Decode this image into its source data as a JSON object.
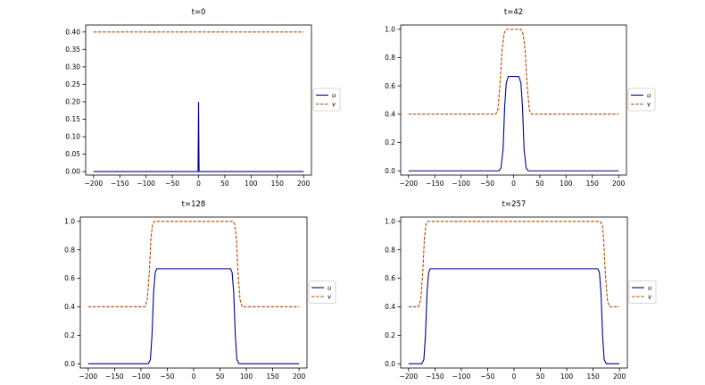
{
  "chart_data": [
    {
      "type": "line",
      "title": "t=0",
      "xlabel": "",
      "ylabel": "",
      "xlim": [
        -215,
        215
      ],
      "ylim": [
        -0.01,
        0.42
      ],
      "xticks": [
        -200,
        -150,
        -100,
        -50,
        0,
        50,
        100,
        150,
        200
      ],
      "xtick_labels": [
        "−200",
        "−150",
        "−100",
        "−50",
        "0",
        "50",
        "100",
        "150",
        "200"
      ],
      "yticks": [
        0.0,
        0.05,
        0.1,
        0.15,
        0.2,
        0.25,
        0.3,
        0.35,
        0.4
      ],
      "ytick_labels": [
        "0.00",
        "0.05",
        "0.10",
        "0.15",
        "0.20",
        "0.25",
        "0.30",
        "0.35",
        "0.40"
      ],
      "grid": false,
      "legend_position": "center-right-outside",
      "series": [
        {
          "name": "u",
          "style": "solid",
          "color": "#00008b",
          "x": [
            -200,
            -2,
            -1,
            0,
            1,
            2,
            200
          ],
          "y": [
            0,
            0,
            0,
            0.2,
            0,
            0,
            0
          ]
        },
        {
          "name": "v",
          "style": "dashed",
          "color": "#b34700",
          "x": [
            -200,
            200
          ],
          "y": [
            0.4,
            0.4
          ]
        }
      ]
    },
    {
      "type": "line",
      "title": "t=42",
      "xlabel": "",
      "ylabel": "",
      "xlim": [
        -215,
        215
      ],
      "ylim": [
        -0.03,
        1.03
      ],
      "xticks": [
        -200,
        -150,
        -100,
        -50,
        0,
        50,
        100,
        150,
        200
      ],
      "xtick_labels": [
        "−200",
        "−150",
        "−100",
        "−50",
        "0",
        "50",
        "100",
        "150",
        "200"
      ],
      "yticks": [
        0.0,
        0.2,
        0.4,
        0.6,
        0.8,
        1.0
      ],
      "ytick_labels": [
        "0.0",
        "0.2",
        "0.4",
        "0.6",
        "0.8",
        "1.0"
      ],
      "grid": false,
      "legend_position": "center-right-outside",
      "series": [
        {
          "name": "u",
          "style": "solid",
          "color": "#00008b",
          "x": [
            -200,
            -28,
            -24,
            -20,
            -17,
            -14,
            -10,
            10,
            14,
            17,
            20,
            24,
            28,
            200
          ],
          "y": [
            0,
            0,
            0.02,
            0.15,
            0.45,
            0.62,
            0.667,
            0.667,
            0.62,
            0.45,
            0.15,
            0.02,
            0,
            0
          ]
        },
        {
          "name": "v",
          "style": "dashed",
          "color": "#b34700",
          "x": [
            -200,
            -34,
            -30,
            -26,
            -22,
            -18,
            -14,
            14,
            18,
            22,
            26,
            30,
            34,
            200
          ],
          "y": [
            0.4,
            0.4,
            0.43,
            0.6,
            0.85,
            0.97,
            1.0,
            1.0,
            0.97,
            0.85,
            0.6,
            0.43,
            0.4,
            0.4
          ]
        }
      ]
    },
    {
      "type": "line",
      "title": "t=128",
      "xlabel": "",
      "ylabel": "",
      "xlim": [
        -215,
        215
      ],
      "ylim": [
        -0.03,
        1.03
      ],
      "xticks": [
        -200,
        -150,
        -100,
        -50,
        0,
        50,
        100,
        150,
        200
      ],
      "xtick_labels": [
        "−200",
        "−150",
        "−100",
        "−50",
        "0",
        "50",
        "100",
        "150",
        "200"
      ],
      "yticks": [
        0.0,
        0.2,
        0.4,
        0.6,
        0.8,
        1.0
      ],
      "ytick_labels": [
        "0.0",
        "0.2",
        "0.4",
        "0.6",
        "0.8",
        "1.0"
      ],
      "grid": false,
      "legend_position": "center-right-outside",
      "series": [
        {
          "name": "u",
          "style": "solid",
          "color": "#00008b",
          "x": [
            -200,
            -86,
            -82,
            -79,
            -76,
            -73,
            -70,
            70,
            73,
            76,
            79,
            82,
            86,
            200
          ],
          "y": [
            0,
            0,
            0.03,
            0.2,
            0.5,
            0.64,
            0.667,
            0.667,
            0.64,
            0.5,
            0.2,
            0.03,
            0,
            0
          ]
        },
        {
          "name": "v",
          "style": "dashed",
          "color": "#b34700",
          "x": [
            -200,
            -92,
            -88,
            -84,
            -81,
            -78,
            -74,
            74,
            78,
            81,
            84,
            88,
            92,
            200
          ],
          "y": [
            0.4,
            0.4,
            0.45,
            0.65,
            0.88,
            0.98,
            1.0,
            1.0,
            0.98,
            0.88,
            0.65,
            0.45,
            0.4,
            0.4
          ]
        }
      ]
    },
    {
      "type": "line",
      "title": "t=257",
      "xlabel": "",
      "ylabel": "",
      "xlim": [
        -215,
        215
      ],
      "ylim": [
        -0.03,
        1.03
      ],
      "xticks": [
        -200,
        -150,
        -100,
        -50,
        0,
        50,
        100,
        150,
        200
      ],
      "xtick_labels": [
        "−200",
        "−150",
        "−100",
        "−50",
        "0",
        "50",
        "100",
        "150",
        "200"
      ],
      "yticks": [
        0.0,
        0.2,
        0.4,
        0.6,
        0.8,
        1.0
      ],
      "ytick_labels": [
        "0.0",
        "0.2",
        "0.4",
        "0.6",
        "0.8",
        "1.0"
      ],
      "grid": false,
      "legend_position": "center-right-outside",
      "series": [
        {
          "name": "u",
          "style": "solid",
          "color": "#00008b",
          "x": [
            -200,
            -175,
            -171,
            -168,
            -165,
            -162,
            -159,
            159,
            162,
            165,
            168,
            171,
            175,
            200
          ],
          "y": [
            0,
            0,
            0.03,
            0.2,
            0.5,
            0.64,
            0.667,
            0.667,
            0.64,
            0.5,
            0.2,
            0.03,
            0,
            0
          ]
        },
        {
          "name": "v",
          "style": "dashed",
          "color": "#b34700",
          "x": [
            -200,
            -181,
            -177,
            -173,
            -170,
            -167,
            -163,
            163,
            167,
            170,
            173,
            177,
            181,
            200
          ],
          "y": [
            0.4,
            0.4,
            0.45,
            0.65,
            0.88,
            0.98,
            1.0,
            1.0,
            0.98,
            0.88,
            0.65,
            0.45,
            0.4,
            0.4
          ]
        }
      ]
    }
  ]
}
